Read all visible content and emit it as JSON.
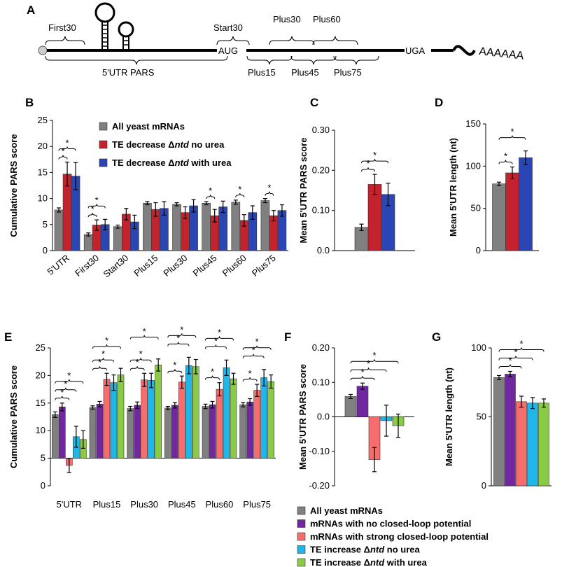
{
  "colors": {
    "gray": "#808080",
    "red": "#c4232d",
    "blue": "#2a46b4",
    "purple": "#7027a0",
    "salmon": "#f76c6c",
    "cyan": "#1fb6e8",
    "green": "#8acb45"
  },
  "diagram": {
    "letter": "A",
    "labels": {
      "first30": "First30",
      "start30": "Start30",
      "plus30": "Plus30",
      "plus60": "Plus60",
      "aug": "AUG",
      "uga": "UGA",
      "polya": "AAAAAA",
      "utr": "5'UTR PARS",
      "plus15": "Plus15",
      "plus45": "Plus45",
      "plus75": "Plus75"
    }
  },
  "legend_top": {
    "items": [
      {
        "pre": "All yeast mRNAs",
        "ital": "",
        "post": "",
        "color": "gray"
      },
      {
        "pre": "TE decrease Δ",
        "ital": "ntd",
        "post": " no urea",
        "color": "red"
      },
      {
        "pre": "TE decrease Δ",
        "ital": "ntd",
        "post": " with urea",
        "color": "blue"
      }
    ]
  },
  "legend_bottom": {
    "items": [
      {
        "pre": "All yeast mRNAs",
        "ital": "",
        "post": "",
        "color": "gray"
      },
      {
        "pre": "mRNAs with no closed-loop potential",
        "ital": "",
        "post": "",
        "color": "purple"
      },
      {
        "pre": "mRNAs with strong closed-loop potential",
        "ital": "",
        "post": "",
        "color": "salmon"
      },
      {
        "pre": "TE increase Δ",
        "ital": "ntd",
        "post": " no urea",
        "color": "cyan"
      },
      {
        "pre": "TE increase Δ",
        "ital": "ntd",
        "post": " with urea",
        "color": "green"
      }
    ]
  },
  "chart_data": [
    {
      "panel": "B",
      "type": "bar",
      "ylabel": "Cumulative PARS score",
      "ylim": [
        0,
        25
      ],
      "yticks": [
        "0",
        "5",
        "10",
        "15",
        "20",
        "25"
      ],
      "categories": [
        "5'UTR",
        "First30",
        "Start30",
        "Plus15",
        "Plus30",
        "Plus45",
        "Plus60",
        "Plus75"
      ],
      "colors": [
        "gray",
        "red",
        "blue"
      ],
      "series": [
        {
          "name": "All yeast mRNAs",
          "values": [
            7.8,
            3.1,
            4.6,
            9.1,
            8.9,
            9.1,
            9.3,
            9.6
          ],
          "errors": [
            0.4,
            0.3,
            0.3,
            0.3,
            0.3,
            0.3,
            0.4,
            0.4
          ]
        },
        {
          "name": "TE decrease Δntd no urea",
          "values": [
            14.7,
            4.9,
            7.0,
            7.9,
            7.3,
            6.7,
            5.8,
            6.7
          ],
          "errors": [
            2.3,
            1.0,
            1.1,
            1.3,
            1.1,
            1.2,
            1.1,
            1.0
          ]
        },
        {
          "name": "TE decrease Δntd with urea",
          "values": [
            14.3,
            5.0,
            5.5,
            8.1,
            8.6,
            8.4,
            7.3,
            7.7
          ],
          "errors": [
            2.6,
            1.0,
            1.3,
            1.3,
            1.2,
            1.1,
            1.3,
            1.1
          ]
        }
      ],
      "sig": [
        {
          "cat": 0,
          "a": 0,
          "b": 1,
          "level": 0
        },
        {
          "cat": 0,
          "a": 0,
          "b": 2,
          "level": 1
        },
        {
          "cat": 1,
          "a": 0,
          "b": 1,
          "level": 0
        },
        {
          "cat": 1,
          "a": 0,
          "b": 2,
          "level": 1
        },
        {
          "cat": 5,
          "a": 0,
          "b": 1,
          "level": 0
        },
        {
          "cat": 6,
          "a": 0,
          "b": 1,
          "level": 0
        },
        {
          "cat": 7,
          "a": 0,
          "b": 1,
          "level": 0
        }
      ],
      "sig_label": "*"
    },
    {
      "panel": "C",
      "type": "bar",
      "ylabel": "Mean 5'UTR PARS score",
      "ylim": [
        0,
        0.3
      ],
      "yticks": [
        "0.0",
        "0.10",
        "0.20",
        "0.30"
      ],
      "categories": [
        ""
      ],
      "colors": [
        "gray",
        "red",
        "blue"
      ],
      "series": [
        {
          "name": "All yeast mRNAs",
          "values": [
            0.058
          ],
          "errors": [
            0.008
          ]
        },
        {
          "name": "TE decrease Δntd no urea",
          "values": [
            0.165
          ],
          "errors": [
            0.025
          ]
        },
        {
          "name": "TE decrease Δntd with urea",
          "values": [
            0.14
          ],
          "errors": [
            0.028
          ]
        }
      ],
      "sig": [
        {
          "cat": 0,
          "a": 0,
          "b": 1,
          "level": 0
        },
        {
          "cat": 0,
          "a": 0,
          "b": 2,
          "level": 1
        }
      ],
      "sig_label": "*"
    },
    {
      "panel": "D",
      "type": "bar",
      "ylabel": "Mean 5'UTR length (nt)",
      "ylim": [
        0,
        150
      ],
      "yticks": [
        "0",
        "50",
        "100",
        "150"
      ],
      "categories": [
        ""
      ],
      "colors": [
        "gray",
        "red",
        "blue"
      ],
      "series": [
        {
          "name": "All yeast mRNAs",
          "values": [
            79
          ],
          "errors": [
            2
          ]
        },
        {
          "name": "TE decrease Δntd no urea",
          "values": [
            92
          ],
          "errors": [
            7
          ]
        },
        {
          "name": "TE decrease Δntd with urea",
          "values": [
            110
          ],
          "errors": [
            8
          ]
        }
      ],
      "sig": [
        {
          "cat": 0,
          "a": 0,
          "b": 1,
          "level": 0
        },
        {
          "cat": 0,
          "a": 0,
          "b": 2,
          "level": 1
        }
      ],
      "sig_label": "*"
    },
    {
      "panel": "E",
      "type": "bar",
      "ylabel": "Cumulative PARS score",
      "ylim": [
        0,
        25
      ],
      "baseline": 5,
      "yticks": [
        "0",
        "5",
        "10",
        "15",
        "20",
        "25"
      ],
      "categories": [
        "5'UTR",
        "Plus15",
        "Plus30",
        "Plus45",
        "Plus60",
        "Plus75"
      ],
      "colors": [
        "gray",
        "purple",
        "salmon",
        "cyan",
        "green"
      ],
      "series": [
        {
          "name": "All yeast mRNAs",
          "values": [
            12.9,
            14.2,
            14.0,
            14.1,
            14.4,
            14.7
          ],
          "errors": [
            0.5,
            0.3,
            0.4,
            0.3,
            0.4,
            0.4
          ]
        },
        {
          "name": "mRNAs with no closed-loop potential",
          "values": [
            14.3,
            14.8,
            14.6,
            14.6,
            14.7,
            15.2
          ],
          "errors": [
            0.7,
            0.5,
            0.6,
            0.5,
            0.6,
            0.6
          ]
        },
        {
          "name": "mRNAs with strong closed-loop potential",
          "values": [
            3.7,
            19.3,
            19.2,
            18.8,
            17.5,
            17.3
          ],
          "errors": [
            1.3,
            1.1,
            1.2,
            1.1,
            1.2,
            1.1
          ]
        },
        {
          "name": "TE increase Δntd no urea",
          "values": [
            8.9,
            18.7,
            19.1,
            21.8,
            21.4,
            19.6
          ],
          "errors": [
            1.9,
            1.4,
            1.3,
            1.5,
            1.4,
            1.5
          ]
        },
        {
          "name": "TE increase Δntd with urea",
          "values": [
            8.4,
            20.1,
            21.9,
            21.6,
            19.4,
            18.9
          ],
          "errors": [
            1.6,
            1.2,
            1.1,
            1.3,
            1.0,
            1.2
          ]
        }
      ],
      "sig": [
        {
          "cat": 0,
          "a": 0,
          "b": 2,
          "level": 0
        },
        {
          "cat": 0,
          "a": 0,
          "b": 3,
          "level": 1
        },
        {
          "cat": 0,
          "a": 0,
          "b": 4,
          "level": 2
        },
        {
          "cat": 1,
          "a": 0,
          "b": 2,
          "level": 0
        },
        {
          "cat": 1,
          "a": 0,
          "b": 3,
          "level": 1
        },
        {
          "cat": 1,
          "a": 0,
          "b": 4,
          "level": 2
        },
        {
          "cat": 2,
          "a": 0,
          "b": 2,
          "level": 0
        },
        {
          "cat": 2,
          "a": 0,
          "b": 3,
          "level": 1
        },
        {
          "cat": 2,
          "a": 0,
          "b": 4,
          "level": 2
        },
        {
          "cat": 3,
          "a": 0,
          "b": 2,
          "level": 0
        },
        {
          "cat": 3,
          "a": 0,
          "b": 3,
          "level": 1
        },
        {
          "cat": 3,
          "a": 0,
          "b": 4,
          "level": 2
        },
        {
          "cat": 4,
          "a": 0,
          "b": 2,
          "level": 0
        },
        {
          "cat": 4,
          "a": 0,
          "b": 3,
          "level": 1
        },
        {
          "cat": 4,
          "a": 0,
          "b": 4,
          "level": 2
        },
        {
          "cat": 5,
          "a": 0,
          "b": 2,
          "level": 0
        },
        {
          "cat": 5,
          "a": 0,
          "b": 3,
          "level": 1
        },
        {
          "cat": 5,
          "a": 0,
          "b": 4,
          "level": 2
        }
      ],
      "sig_label": "*"
    },
    {
      "panel": "F",
      "type": "bar",
      "ylabel": "Mean 5'UTR PARS score",
      "ylim": [
        -0.2,
        0.2
      ],
      "yticks": [
        "-0.20",
        "-0.10",
        "0.0",
        "0.10",
        "0.20"
      ],
      "categories": [
        ""
      ],
      "colors": [
        "gray",
        "purple",
        "salmon",
        "cyan",
        "green"
      ],
      "series": [
        {
          "name": "All yeast mRNAs",
          "values": [
            0.059
          ],
          "errors": [
            0.006
          ]
        },
        {
          "name": "mRNAs with no closed-loop potential",
          "values": [
            0.089
          ],
          "errors": [
            0.009
          ]
        },
        {
          "name": "mRNAs with strong closed-loop potential",
          "values": [
            -0.124
          ],
          "errors": [
            0.035
          ]
        },
        {
          "name": "TE increase Δntd no urea",
          "values": [
            -0.011
          ],
          "errors": [
            0.045
          ]
        },
        {
          "name": "TE increase Δntd with urea",
          "values": [
            -0.026
          ],
          "errors": [
            0.034
          ]
        }
      ],
      "sig": [
        {
          "cat": 0,
          "a": 0,
          "b": 2,
          "level": 0
        },
        {
          "cat": 0,
          "a": 0,
          "b": 3,
          "level": 1
        },
        {
          "cat": 0,
          "a": 0,
          "b": 4,
          "level": 2
        }
      ],
      "sig_label": "*"
    },
    {
      "panel": "G",
      "type": "bar",
      "ylabel": "Mean 5'UTR length (nt)",
      "ylim": [
        0,
        100
      ],
      "yticks": [
        "0",
        "50",
        "100"
      ],
      "categories": [
        ""
      ],
      "colors": [
        "gray",
        "purple",
        "salmon",
        "cyan",
        "green"
      ],
      "series": [
        {
          "name": "All yeast mRNAs",
          "values": [
            78.5
          ],
          "errors": [
            1.5
          ]
        },
        {
          "name": "mRNAs with no closed-loop potential",
          "values": [
            81
          ],
          "errors": [
            2
          ]
        },
        {
          "name": "mRNAs with strong closed-loop potential",
          "values": [
            61
          ],
          "errors": [
            4
          ]
        },
        {
          "name": "TE increase Δntd no urea",
          "values": [
            60
          ],
          "errors": [
            4
          ]
        },
        {
          "name": "TE increase Δntd with urea",
          "values": [
            60
          ],
          "errors": [
            3
          ]
        }
      ],
      "sig": [
        {
          "cat": 0,
          "a": 0,
          "b": 2,
          "level": 0
        },
        {
          "cat": 0,
          "a": 0,
          "b": 3,
          "level": 1
        },
        {
          "cat": 0,
          "a": 0,
          "b": 4,
          "level": 2
        }
      ],
      "sig_label": "*"
    }
  ]
}
